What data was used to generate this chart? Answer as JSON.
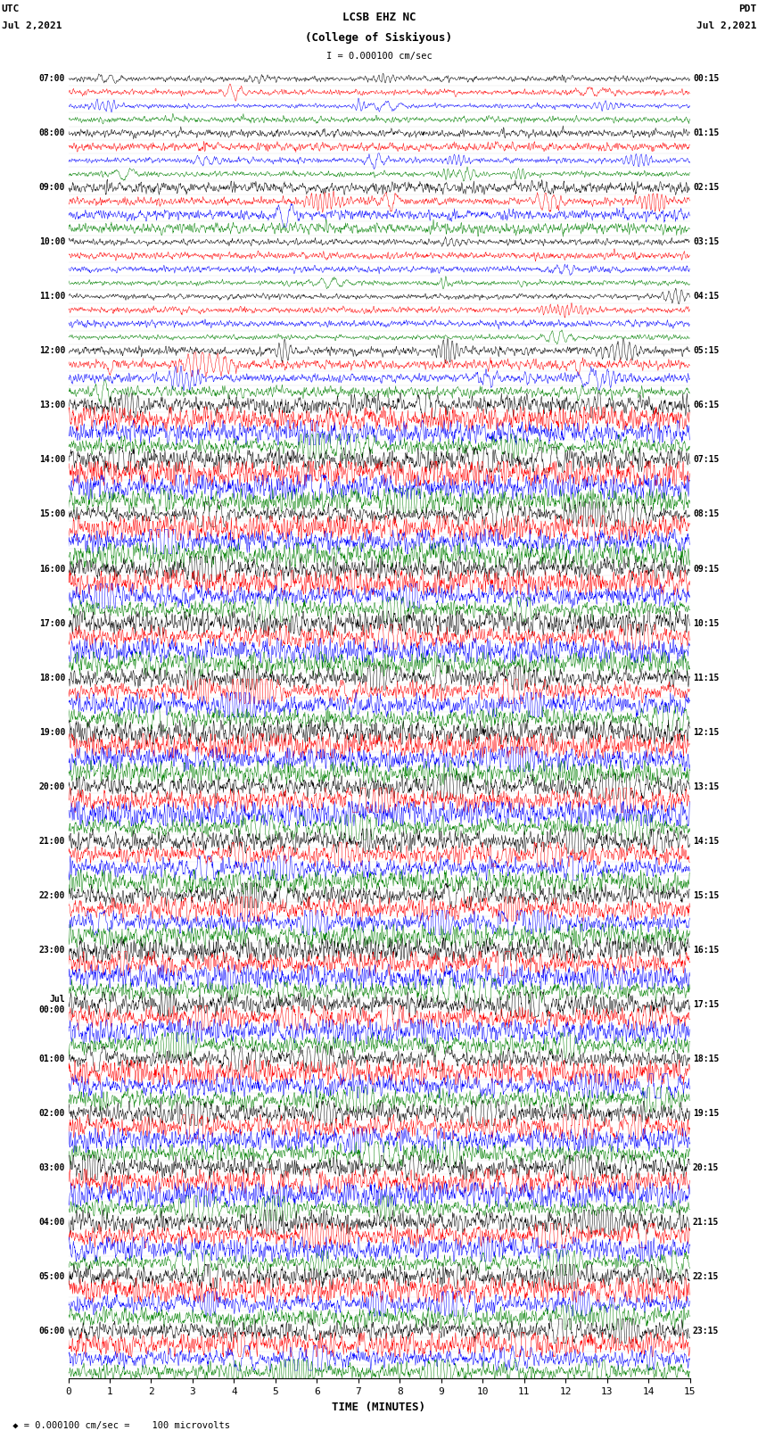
{
  "title_line1": "LCSB EHZ NC",
  "title_line2": "(College of Siskiyous)",
  "scale_text": "I = 0.000100 cm/sec",
  "utc_label1": "UTC",
  "utc_label2": "Jul 2,2021",
  "pdt_label1": "PDT",
  "pdt_label2": "Jul 2,2021",
  "xlabel": "TIME (MINUTES)",
  "footer_label": " ◆ = 0.000100 cm/sec =    100 microvolts",
  "xlim": [
    0,
    15
  ],
  "xticks": [
    0,
    1,
    2,
    3,
    4,
    5,
    6,
    7,
    8,
    9,
    10,
    11,
    12,
    13,
    14,
    15
  ],
  "colors_cycle": [
    "black",
    "red",
    "blue",
    "green"
  ],
  "n_hours": 24,
  "traces_per_hour": 4,
  "figsize": [
    8.5,
    16.13
  ],
  "dpi": 100,
  "bg_color": "white",
  "left_times": [
    "07:00",
    "08:00",
    "09:00",
    "10:00",
    "11:00",
    "12:00",
    "13:00",
    "14:00",
    "15:00",
    "16:00",
    "17:00",
    "18:00",
    "19:00",
    "20:00",
    "21:00",
    "22:00",
    "23:00",
    "Jul\n00:00",
    "01:00",
    "02:00",
    "03:00",
    "04:00",
    "05:00",
    "06:00"
  ],
  "right_times": [
    "00:15",
    "01:15",
    "02:15",
    "03:15",
    "04:15",
    "05:15",
    "06:15",
    "07:15",
    "08:15",
    "09:15",
    "10:15",
    "11:15",
    "12:15",
    "13:15",
    "14:15",
    "15:15",
    "16:15",
    "17:15",
    "18:15",
    "19:15",
    "20:15",
    "21:15",
    "22:15",
    "23:15"
  ],
  "amp_by_hour": [
    0.25,
    0.3,
    0.45,
    0.25,
    0.25,
    0.5,
    0.9,
    1.1,
    1.1,
    1.0,
    1.0,
    1.0,
    1.0,
    1.1,
    1.0,
    1.0,
    1.0,
    1.0,
    1.0,
    1.0,
    1.1,
    1.0,
    1.0,
    1.0
  ]
}
